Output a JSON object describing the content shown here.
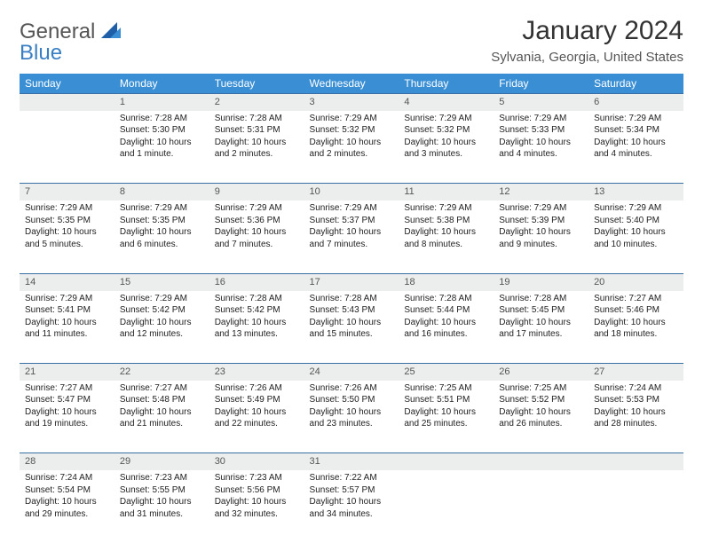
{
  "brand": {
    "part1": "General",
    "part2": "Blue"
  },
  "title": "January 2024",
  "location": "Sylvania, Georgia, United States",
  "header_bg": "#3a8fd4",
  "daynum_bg": "#eceeee",
  "rule_color": "#3a6fa4",
  "weekdays": [
    "Sunday",
    "Monday",
    "Tuesday",
    "Wednesday",
    "Thursday",
    "Friday",
    "Saturday"
  ],
  "weeks": [
    [
      null,
      {
        "n": "1",
        "sr": "Sunrise: 7:28 AM",
        "ss": "Sunset: 5:30 PM",
        "d1": "Daylight: 10 hours",
        "d2": "and 1 minute."
      },
      {
        "n": "2",
        "sr": "Sunrise: 7:28 AM",
        "ss": "Sunset: 5:31 PM",
        "d1": "Daylight: 10 hours",
        "d2": "and 2 minutes."
      },
      {
        "n": "3",
        "sr": "Sunrise: 7:29 AM",
        "ss": "Sunset: 5:32 PM",
        "d1": "Daylight: 10 hours",
        "d2": "and 2 minutes."
      },
      {
        "n": "4",
        "sr": "Sunrise: 7:29 AM",
        "ss": "Sunset: 5:32 PM",
        "d1": "Daylight: 10 hours",
        "d2": "and 3 minutes."
      },
      {
        "n": "5",
        "sr": "Sunrise: 7:29 AM",
        "ss": "Sunset: 5:33 PM",
        "d1": "Daylight: 10 hours",
        "d2": "and 4 minutes."
      },
      {
        "n": "6",
        "sr": "Sunrise: 7:29 AM",
        "ss": "Sunset: 5:34 PM",
        "d1": "Daylight: 10 hours",
        "d2": "and 4 minutes."
      }
    ],
    [
      {
        "n": "7",
        "sr": "Sunrise: 7:29 AM",
        "ss": "Sunset: 5:35 PM",
        "d1": "Daylight: 10 hours",
        "d2": "and 5 minutes."
      },
      {
        "n": "8",
        "sr": "Sunrise: 7:29 AM",
        "ss": "Sunset: 5:35 PM",
        "d1": "Daylight: 10 hours",
        "d2": "and 6 minutes."
      },
      {
        "n": "9",
        "sr": "Sunrise: 7:29 AM",
        "ss": "Sunset: 5:36 PM",
        "d1": "Daylight: 10 hours",
        "d2": "and 7 minutes."
      },
      {
        "n": "10",
        "sr": "Sunrise: 7:29 AM",
        "ss": "Sunset: 5:37 PM",
        "d1": "Daylight: 10 hours",
        "d2": "and 7 minutes."
      },
      {
        "n": "11",
        "sr": "Sunrise: 7:29 AM",
        "ss": "Sunset: 5:38 PM",
        "d1": "Daylight: 10 hours",
        "d2": "and 8 minutes."
      },
      {
        "n": "12",
        "sr": "Sunrise: 7:29 AM",
        "ss": "Sunset: 5:39 PM",
        "d1": "Daylight: 10 hours",
        "d2": "and 9 minutes."
      },
      {
        "n": "13",
        "sr": "Sunrise: 7:29 AM",
        "ss": "Sunset: 5:40 PM",
        "d1": "Daylight: 10 hours",
        "d2": "and 10 minutes."
      }
    ],
    [
      {
        "n": "14",
        "sr": "Sunrise: 7:29 AM",
        "ss": "Sunset: 5:41 PM",
        "d1": "Daylight: 10 hours",
        "d2": "and 11 minutes."
      },
      {
        "n": "15",
        "sr": "Sunrise: 7:29 AM",
        "ss": "Sunset: 5:42 PM",
        "d1": "Daylight: 10 hours",
        "d2": "and 12 minutes."
      },
      {
        "n": "16",
        "sr": "Sunrise: 7:28 AM",
        "ss": "Sunset: 5:42 PM",
        "d1": "Daylight: 10 hours",
        "d2": "and 13 minutes."
      },
      {
        "n": "17",
        "sr": "Sunrise: 7:28 AM",
        "ss": "Sunset: 5:43 PM",
        "d1": "Daylight: 10 hours",
        "d2": "and 15 minutes."
      },
      {
        "n": "18",
        "sr": "Sunrise: 7:28 AM",
        "ss": "Sunset: 5:44 PM",
        "d1": "Daylight: 10 hours",
        "d2": "and 16 minutes."
      },
      {
        "n": "19",
        "sr": "Sunrise: 7:28 AM",
        "ss": "Sunset: 5:45 PM",
        "d1": "Daylight: 10 hours",
        "d2": "and 17 minutes."
      },
      {
        "n": "20",
        "sr": "Sunrise: 7:27 AM",
        "ss": "Sunset: 5:46 PM",
        "d1": "Daylight: 10 hours",
        "d2": "and 18 minutes."
      }
    ],
    [
      {
        "n": "21",
        "sr": "Sunrise: 7:27 AM",
        "ss": "Sunset: 5:47 PM",
        "d1": "Daylight: 10 hours",
        "d2": "and 19 minutes."
      },
      {
        "n": "22",
        "sr": "Sunrise: 7:27 AM",
        "ss": "Sunset: 5:48 PM",
        "d1": "Daylight: 10 hours",
        "d2": "and 21 minutes."
      },
      {
        "n": "23",
        "sr": "Sunrise: 7:26 AM",
        "ss": "Sunset: 5:49 PM",
        "d1": "Daylight: 10 hours",
        "d2": "and 22 minutes."
      },
      {
        "n": "24",
        "sr": "Sunrise: 7:26 AM",
        "ss": "Sunset: 5:50 PM",
        "d1": "Daylight: 10 hours",
        "d2": "and 23 minutes."
      },
      {
        "n": "25",
        "sr": "Sunrise: 7:25 AM",
        "ss": "Sunset: 5:51 PM",
        "d1": "Daylight: 10 hours",
        "d2": "and 25 minutes."
      },
      {
        "n": "26",
        "sr": "Sunrise: 7:25 AM",
        "ss": "Sunset: 5:52 PM",
        "d1": "Daylight: 10 hours",
        "d2": "and 26 minutes."
      },
      {
        "n": "27",
        "sr": "Sunrise: 7:24 AM",
        "ss": "Sunset: 5:53 PM",
        "d1": "Daylight: 10 hours",
        "d2": "and 28 minutes."
      }
    ],
    [
      {
        "n": "28",
        "sr": "Sunrise: 7:24 AM",
        "ss": "Sunset: 5:54 PM",
        "d1": "Daylight: 10 hours",
        "d2": "and 29 minutes."
      },
      {
        "n": "29",
        "sr": "Sunrise: 7:23 AM",
        "ss": "Sunset: 5:55 PM",
        "d1": "Daylight: 10 hours",
        "d2": "and 31 minutes."
      },
      {
        "n": "30",
        "sr": "Sunrise: 7:23 AM",
        "ss": "Sunset: 5:56 PM",
        "d1": "Daylight: 10 hours",
        "d2": "and 32 minutes."
      },
      {
        "n": "31",
        "sr": "Sunrise: 7:22 AM",
        "ss": "Sunset: 5:57 PM",
        "d1": "Daylight: 10 hours",
        "d2": "and 34 minutes."
      },
      null,
      null,
      null
    ]
  ]
}
